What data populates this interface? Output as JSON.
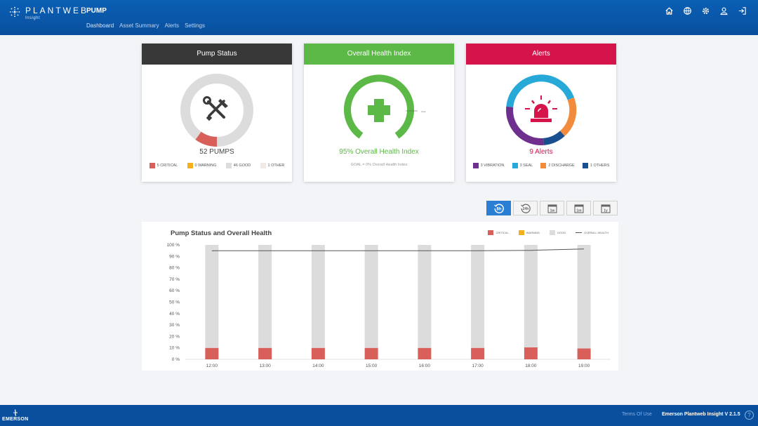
{
  "header": {
    "logo_text": "PLANTWEB",
    "logo_sub": "Insight",
    "app_title": "PUMP",
    "nav": [
      "Dashboard",
      "Asset Summary",
      "Alerts",
      "Settings"
    ],
    "icons": [
      "home-icon",
      "globe-icon",
      "gear-icon",
      "user-icon",
      "logout-icon"
    ]
  },
  "colors": {
    "header_bg": "#0a4f9e",
    "critical": "#d9605a",
    "warning": "#f2b01e",
    "good": "#dcdcdc",
    "other": "#efebe6",
    "health_green": "#5cb947",
    "alert_red": "#d4144a",
    "vibration": "#6f2f8e",
    "seal": "#27a9d8",
    "discharge": "#f28c3c",
    "others": "#1a4f8f"
  },
  "pump_status": {
    "title": "Pump Status",
    "total_label": "52 PUMPS",
    "legend": [
      {
        "label": "5 CRITICAL",
        "color": "#d9605a",
        "value": 5
      },
      {
        "label": "0 WARNING",
        "color": "#f2b01e",
        "value": 0
      },
      {
        "label": "46 GOOD",
        "color": "#dcdcdc",
        "value": 46
      },
      {
        "label": "1 OTHER",
        "color": "#efebe6",
        "value": 1
      }
    ],
    "icon": "tools-icon"
  },
  "health": {
    "title": "Overall Health Index",
    "value_label": "95% Overall Health Index",
    "goal_label": "GOAL = 0% Overall Health Index",
    "goal_tick": "Goal",
    "value": 95,
    "icon": "health-cross-icon"
  },
  "alerts": {
    "title": "Alerts",
    "total_label": "9 Alerts",
    "legend": [
      {
        "label": "3 VIBRATION",
        "color": "#6f2f8e",
        "value": 3
      },
      {
        "label": "3 SEAL",
        "color": "#27a9d8",
        "value": 3
      },
      {
        "label": "2 DISCHARGE",
        "color": "#f28c3c",
        "value": 2
      },
      {
        "label": "1 OTHERS",
        "color": "#1a4f8f",
        "value": 1
      }
    ],
    "icon": "alarm-light-icon"
  },
  "time_buttons": [
    {
      "label": "8h",
      "icon": "history-8h-icon",
      "active": true
    },
    {
      "label": "24h",
      "icon": "history-24h-icon",
      "active": false
    },
    {
      "label": "1w",
      "icon": "calendar-week-icon",
      "active": false
    },
    {
      "label": "1m",
      "icon": "calendar-month-icon",
      "active": false
    },
    {
      "label": "1y",
      "icon": "calendar-year-icon",
      "active": false
    }
  ],
  "chart_data": {
    "type": "bar",
    "title": "Pump Status and Overall Health",
    "legend": [
      "CRITICAL",
      "WARNING",
      "GOOD",
      "OVERALL HEALTH"
    ],
    "categories": [
      "12:00",
      "13:00",
      "14:00",
      "15:00",
      "16:00",
      "17:00",
      "18:00",
      "19:00"
    ],
    "series": [
      {
        "name": "CRITICAL",
        "type": "bar",
        "values": [
          10,
          10,
          10,
          10,
          10,
          10,
          10.5,
          9.5
        ]
      },
      {
        "name": "WARNING",
        "type": "bar",
        "values": [
          0,
          0,
          0,
          0,
          0,
          0,
          0,
          0
        ]
      },
      {
        "name": "GOOD",
        "type": "bar",
        "values": [
          90,
          90,
          90,
          90,
          90,
          90,
          89.5,
          90.5
        ]
      },
      {
        "name": "OVERALL HEALTH",
        "type": "line",
        "values": [
          95,
          95,
          95,
          95,
          95,
          95,
          95.3,
          96.5
        ]
      }
    ],
    "yticks": [
      "0 %",
      "10 %",
      "20 %",
      "30 %",
      "40 %",
      "50 %",
      "60 %",
      "70 %",
      "80 %",
      "90 %",
      "100 %"
    ],
    "ylim": [
      0,
      100
    ],
    "stacked": true,
    "legend_position": "top-right"
  },
  "footer": {
    "brand": "EMERSON",
    "terms": "Terms Of Use",
    "version": "Emerson Plantweb Insight V 2.1.5",
    "help": "?"
  }
}
